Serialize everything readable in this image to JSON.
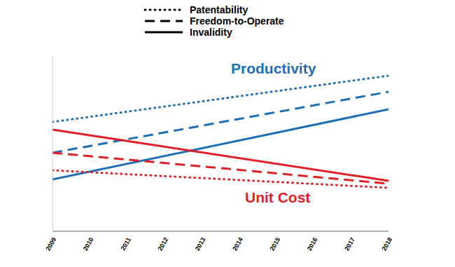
{
  "chart_data": {
    "type": "line",
    "x": [
      2009,
      2010,
      2011,
      2012,
      2013,
      2014,
      2015,
      2016,
      2017,
      2018
    ],
    "xlim": [
      2009,
      2018
    ],
    "xticks": [
      2009,
      2010,
      2011,
      2012,
      2013,
      2014,
      2015,
      2016,
      2017,
      2018
    ],
    "ylim": [
      0,
      100
    ],
    "tick_labels": "x",
    "legend": "top",
    "annotations": [
      {
        "text": "Productivity",
        "color": "#1f6fb5"
      },
      {
        "text": "Unit Cost",
        "color": "#e02027"
      }
    ],
    "series": [
      {
        "name": "Patentability",
        "color": "#1f6fb5",
        "line_style": "dotted",
        "x": [
          2009,
          2018
        ],
        "values": [
          62.4,
          88.8
        ]
      },
      {
        "name": "Freedom-to-Operate",
        "color": "#1f6fb5",
        "line_style": "dashed",
        "x": [
          2009,
          2018
        ],
        "values": [
          44.8,
          79.6
        ]
      },
      {
        "name": "Invalidity",
        "color": "#1f6fb5",
        "line_style": "solid",
        "x": [
          2009,
          2018
        ],
        "values": [
          29.6,
          69.6
        ]
      },
      {
        "name": "Invalidity",
        "color": "#e02027",
        "line_style": "solid",
        "x": [
          2009,
          2018
        ],
        "values": [
          58,
          28.8
        ]
      },
      {
        "name": "Freedom-to-Operate",
        "color": "#e02027",
        "line_style": "dashed",
        "x": [
          2009,
          2018
        ],
        "values": [
          44.8,
          27.2
        ]
      },
      {
        "name": "Patentability",
        "color": "#e02027",
        "line_style": "dotted",
        "x": [
          2009,
          2018
        ],
        "values": [
          34.8,
          24.8
        ]
      }
    ]
  }
}
